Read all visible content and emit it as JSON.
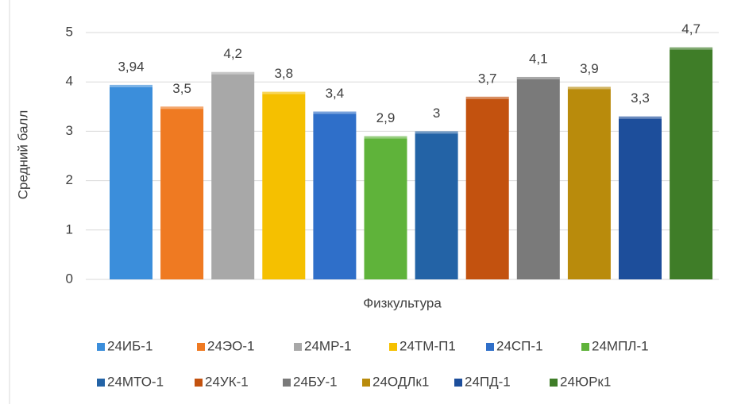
{
  "chart_data": {
    "type": "bar",
    "categories": [
      "Физкультура"
    ],
    "ylabel": "Средний балл",
    "ylim": [
      0,
      5
    ],
    "yticks": [
      0,
      1,
      2,
      3,
      4,
      5
    ],
    "grid": true,
    "legend": "bottom",
    "series": [
      {
        "name": "24ИБ-1",
        "color": "#3b8edb",
        "values": [
          3.94
        ],
        "value_labels": [
          "3,94"
        ]
      },
      {
        "name": "24ЭО-1",
        "color": "#ef7a22",
        "values": [
          3.5
        ],
        "value_labels": [
          "3,5"
        ]
      },
      {
        "name": "24МР-1",
        "color": "#a8a8a8",
        "values": [
          4.2
        ],
        "value_labels": [
          "4,2"
        ]
      },
      {
        "name": "24ТМ-П1",
        "color": "#f5c000",
        "values": [
          3.8
        ],
        "value_labels": [
          "3,8"
        ]
      },
      {
        "name": "24СП-1",
        "color": "#2f6fc9",
        "values": [
          3.4
        ],
        "value_labels": [
          "3,4"
        ]
      },
      {
        "name": "24МПЛ-1",
        "color": "#5fb33a",
        "values": [
          2.9
        ],
        "value_labels": [
          "2,9"
        ]
      },
      {
        "name": "24МТО-1",
        "color": "#2363a6",
        "values": [
          3
        ],
        "value_labels": [
          "3"
        ]
      },
      {
        "name": "24УК-1",
        "color": "#c3520f",
        "values": [
          3.7
        ],
        "value_labels": [
          "3,7"
        ]
      },
      {
        "name": "24БУ-1",
        "color": "#7a7a7a",
        "values": [
          4.1
        ],
        "value_labels": [
          "4,1"
        ]
      },
      {
        "name": "24ОДЛк1",
        "color": "#b98b0c",
        "values": [
          3.9
        ],
        "value_labels": [
          "3,9"
        ]
      },
      {
        "name": "24ПД-1",
        "color": "#1d4e9b",
        "values": [
          3.3
        ],
        "value_labels": [
          "3,3"
        ]
      },
      {
        "name": "24ЮРк1",
        "color": "#3f7d28",
        "values": [
          4.7
        ],
        "value_labels": [
          "4,7"
        ]
      }
    ]
  }
}
